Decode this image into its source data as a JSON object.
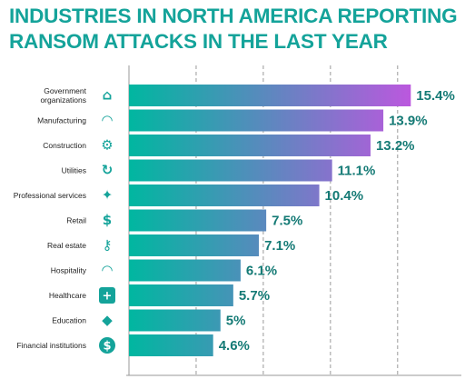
{
  "chart_data": {
    "type": "bar",
    "orientation": "horizontal",
    "title_lines": [
      "INDUSTRIES IN NORTH AMERICA REPORTING",
      "RANSOM ATTACKS IN THE LAST YEAR"
    ],
    "categories": [
      {
        "label_lines": [
          "Government",
          "organizations"
        ],
        "icon": "government-building-icon"
      },
      {
        "label_lines": [
          "Manufacturing"
        ],
        "icon": "hard-hat-icon"
      },
      {
        "label_lines": [
          "Construction"
        ],
        "icon": "gears-icon"
      },
      {
        "label_lines": [
          "Utilities"
        ],
        "icon": "refresh-arrows-icon"
      },
      {
        "label_lines": [
          "Professional services"
        ],
        "icon": "award-badge-icon"
      },
      {
        "label_lines": [
          "Retail"
        ],
        "icon": "price-tag-icon"
      },
      {
        "label_lines": [
          "Real estate"
        ],
        "icon": "key-icon"
      },
      {
        "label_lines": [
          "Hospitality"
        ],
        "icon": "service-bell-icon"
      },
      {
        "label_lines": [
          "Healthcare"
        ],
        "icon": "medical-cross-icon"
      },
      {
        "label_lines": [
          "Education"
        ],
        "icon": "graduation-cap-icon"
      },
      {
        "label_lines": [
          "Financial institutions"
        ],
        "icon": "dollar-coin-icon"
      }
    ],
    "values": [
      15.4,
      13.9,
      13.2,
      11.1,
      10.4,
      7.5,
      7.1,
      6.1,
      5.7,
      5,
      4.6
    ],
    "value_labels": [
      "15.4%",
      "13.9%",
      "13.2%",
      "11.1%",
      "10.4%",
      "7.5%",
      "7.1%",
      "6.1%",
      "5.7%",
      "5%",
      "4.6%"
    ],
    "xlim": [
      0,
      17.5
    ],
    "grid": "vertical-dashed",
    "colors": {
      "bar_start": "#00b7a0",
      "bar_end": "#bb58de",
      "title": "#14a39a",
      "value_text": "#147a75",
      "icon_bg": "#14a39a"
    }
  }
}
